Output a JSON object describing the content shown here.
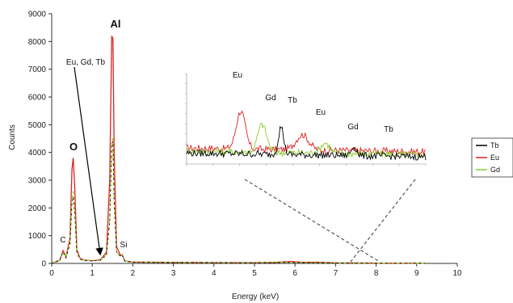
{
  "chart_data": {
    "type": "line",
    "xlabel": "Energy (keV)",
    "ylabel": "Counts",
    "xlim": [
      0,
      10
    ],
    "ylim": [
      0,
      9000
    ],
    "xticks": [
      0,
      1,
      2,
      3,
      4,
      5,
      6,
      7,
      8,
      9,
      10
    ],
    "yticks": [
      0,
      1000,
      2000,
      3000,
      4000,
      5000,
      6000,
      7000,
      8000,
      9000
    ],
    "grid": false,
    "legend_position": "right",
    "peak_labels": [
      {
        "text": "C",
        "x": 0.28,
        "y": 500
      },
      {
        "text": "O",
        "x": 0.53,
        "y": 3800
      },
      {
        "text": "Al",
        "x": 1.49,
        "y": 8200
      },
      {
        "text": "Si",
        "x": 1.74,
        "y": 300
      },
      {
        "text": "Eu, Gd, Tb",
        "x": 1.2,
        "y": 300
      }
    ],
    "series": [
      {
        "name": "Tb",
        "color": "#000000",
        "points": [
          [
            0.0,
            0
          ],
          [
            0.1,
            50
          ],
          [
            0.2,
            100
          ],
          [
            0.28,
            420
          ],
          [
            0.35,
            200
          ],
          [
            0.45,
            700
          ],
          [
            0.5,
            2200
          ],
          [
            0.53,
            2400
          ],
          [
            0.57,
            1800
          ],
          [
            0.62,
            400
          ],
          [
            0.7,
            150
          ],
          [
            0.8,
            100
          ],
          [
            1.0,
            90
          ],
          [
            1.2,
            110
          ],
          [
            1.35,
            300
          ],
          [
            1.43,
            1500
          ],
          [
            1.48,
            4300
          ],
          [
            1.51,
            4400
          ],
          [
            1.54,
            2200
          ],
          [
            1.6,
            400
          ],
          [
            1.7,
            250
          ],
          [
            1.74,
            300
          ],
          [
            1.8,
            80
          ],
          [
            2.0,
            40
          ],
          [
            3.0,
            30
          ],
          [
            4.0,
            25
          ],
          [
            5.0,
            20
          ],
          [
            5.5,
            25
          ],
          [
            5.9,
            40
          ],
          [
            6.2,
            25
          ],
          [
            6.6,
            20
          ],
          [
            7.0,
            15
          ],
          [
            8.0,
            10
          ],
          [
            9.2,
            10
          ]
        ]
      },
      {
        "name": "Eu",
        "color": "#e02020",
        "points": [
          [
            0.0,
            0
          ],
          [
            0.1,
            60
          ],
          [
            0.2,
            120
          ],
          [
            0.28,
            460
          ],
          [
            0.35,
            220
          ],
          [
            0.45,
            900
          ],
          [
            0.5,
            3400
          ],
          [
            0.53,
            3800
          ],
          [
            0.57,
            2700
          ],
          [
            0.62,
            500
          ],
          [
            0.7,
            180
          ],
          [
            0.8,
            120
          ],
          [
            1.0,
            100
          ],
          [
            1.2,
            130
          ],
          [
            1.35,
            400
          ],
          [
            1.43,
            3000
          ],
          [
            1.48,
            8200
          ],
          [
            1.51,
            8100
          ],
          [
            1.54,
            4000
          ],
          [
            1.6,
            600
          ],
          [
            1.7,
            280
          ],
          [
            1.74,
            320
          ],
          [
            1.8,
            90
          ],
          [
            2.0,
            50
          ],
          [
            3.0,
            35
          ],
          [
            4.0,
            30
          ],
          [
            5.0,
            30
          ],
          [
            5.5,
            35
          ],
          [
            5.9,
            70
          ],
          [
            6.2,
            40
          ],
          [
            6.6,
            45
          ],
          [
            7.0,
            20
          ],
          [
            8.0,
            12
          ],
          [
            9.2,
            10
          ]
        ]
      },
      {
        "name": "Gd",
        "color": "#8ccc30",
        "points": [
          [
            0.0,
            0
          ],
          [
            0.1,
            55
          ],
          [
            0.2,
            110
          ],
          [
            0.28,
            430
          ],
          [
            0.35,
            210
          ],
          [
            0.45,
            750
          ],
          [
            0.5,
            2400
          ],
          [
            0.53,
            2600
          ],
          [
            0.57,
            1900
          ],
          [
            0.62,
            420
          ],
          [
            0.7,
            160
          ],
          [
            0.8,
            110
          ],
          [
            1.0,
            95
          ],
          [
            1.2,
            120
          ],
          [
            1.35,
            320
          ],
          [
            1.43,
            1600
          ],
          [
            1.48,
            4400
          ],
          [
            1.51,
            4500
          ],
          [
            1.54,
            2300
          ],
          [
            1.6,
            420
          ],
          [
            1.7,
            260
          ],
          [
            1.74,
            310
          ],
          [
            1.8,
            85
          ],
          [
            2.0,
            45
          ],
          [
            3.0,
            32
          ],
          [
            4.0,
            28
          ],
          [
            5.0,
            25
          ],
          [
            5.5,
            45
          ],
          [
            5.9,
            35
          ],
          [
            6.2,
            30
          ],
          [
            6.6,
            25
          ],
          [
            7.0,
            18
          ],
          [
            8.0,
            11
          ],
          [
            9.2,
            10
          ]
        ]
      }
    ],
    "inset": {
      "source_x_range": [
        5.5,
        7.4
      ],
      "peak_labels": [
        {
          "text": "Eu",
          "x": 5.93
        },
        {
          "text": "Gd",
          "x": 6.1
        },
        {
          "text": "Tb",
          "x": 6.25
        },
        {
          "text": "Eu",
          "x": 6.42
        },
        {
          "text": "Gd",
          "x": 6.6
        },
        {
          "text": "Tb",
          "x": 6.83
        }
      ]
    }
  }
}
